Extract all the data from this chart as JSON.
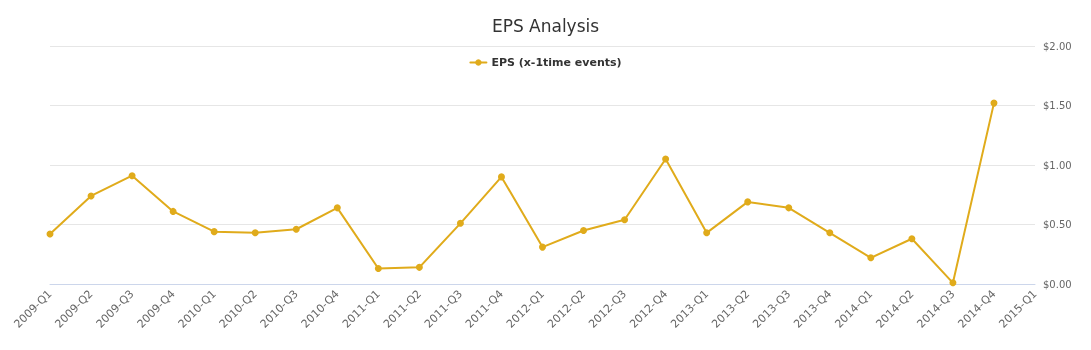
{
  "chart_data": {
    "type": "line",
    "title": "EPS Analysis",
    "categories": [
      "2009-Q1",
      "2009-Q2",
      "2009-Q3",
      "2009-Q4",
      "2010-Q1",
      "2010-Q2",
      "2010-Q3",
      "2010-Q4",
      "2011-Q1",
      "2011-Q2",
      "2011-Q3",
      "2011-Q4",
      "2012-Q1",
      "2012-Q2",
      "2012-Q3",
      "2012-Q4",
      "2013-Q1",
      "2013-Q2",
      "2013-Q3",
      "2013-Q4",
      "2014-Q1",
      "2014-Q2",
      "2014-Q3",
      "2014-Q4",
      "2015-Q1"
    ],
    "series": [
      {
        "name": "EPS (x-1time events)",
        "color": "#e0ab1b",
        "values": [
          0.42,
          0.74,
          0.91,
          0.61,
          0.44,
          0.43,
          0.46,
          0.64,
          0.13,
          0.14,
          0.51,
          0.9,
          0.31,
          0.45,
          0.54,
          1.05,
          0.43,
          0.69,
          0.64,
          0.43,
          0.22,
          0.38,
          0.01,
          1.52,
          null
        ]
      }
    ],
    "ylim": [
      0,
      2
    ],
    "yticks": [
      {
        "value": 0,
        "label": "$0.00"
      },
      {
        "value": 0.5,
        "label": "$0.50"
      },
      {
        "value": 1,
        "label": "$1.00"
      },
      {
        "value": 1.5,
        "label": "$1.50"
      },
      {
        "value": 2,
        "label": "$2.00"
      }
    ],
    "grid": "y",
    "legend": "top",
    "marker": "circle",
    "line_style": "solid"
  }
}
